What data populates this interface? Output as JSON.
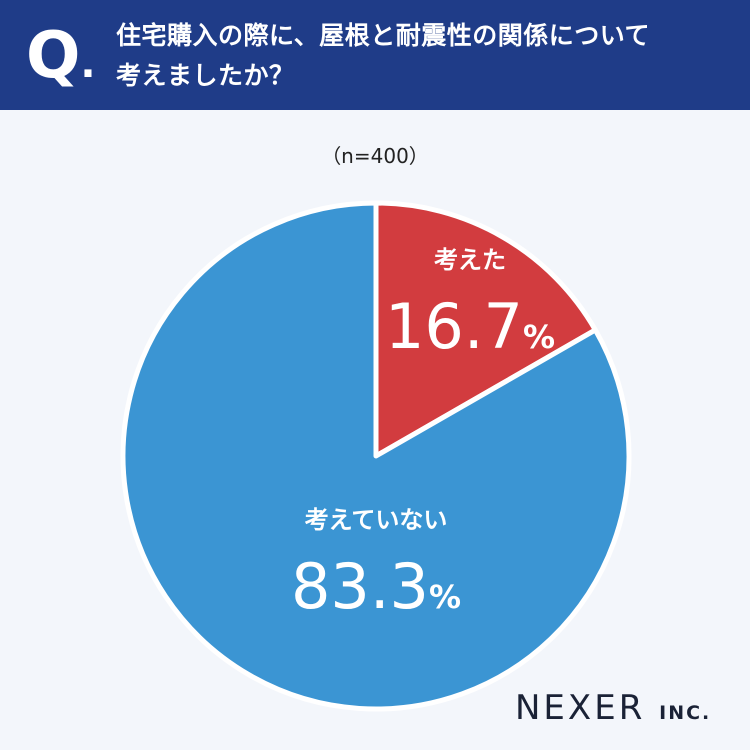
{
  "header": {
    "q_mark": "Q",
    "q_dot": ".",
    "question_line1": "住宅購入の際に、屋根と耐震性の関係について",
    "question_line2": "考えましたか？"
  },
  "sample_size": "（n=400）",
  "brand": {
    "name": "NEXER",
    "suffix": "INC."
  },
  "chart_data": {
    "type": "pie",
    "title": "住宅購入の際に、屋根と耐震性の関係について考えましたか？",
    "n": 400,
    "slices": [
      {
        "label": "考えた",
        "value": 16.7,
        "display": "16.7",
        "unit": "%",
        "color": "#d23c3f"
      },
      {
        "label": "考えていない",
        "value": 83.3,
        "display": "83.3",
        "unit": "%",
        "color": "#3b95d3"
      }
    ],
    "start_angle_deg": 0,
    "direction": "clockwise"
  }
}
